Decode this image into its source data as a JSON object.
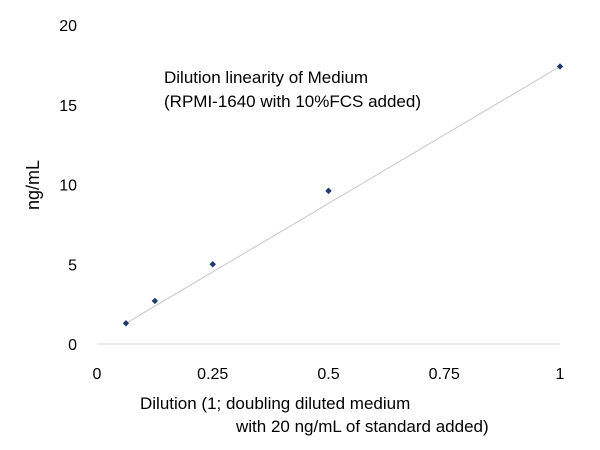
{
  "chart_data": {
    "type": "scatter",
    "title": "",
    "annotation": [
      "Dilution linearity of Medium",
      "(RPMI-1640 with 10%FCS added)"
    ],
    "xlabel": [
      "Dilution (1; doubling diluted medium",
      "with 20 ng/mL of standard added)"
    ],
    "ylabel": "ng/mL",
    "xlim": [
      0,
      1
    ],
    "ylim": [
      0,
      20
    ],
    "x_ticks": [
      "0",
      "0.25",
      "0.5",
      "0.75",
      "1"
    ],
    "y_ticks": [
      "0",
      "5",
      "10",
      "15",
      "20"
    ],
    "grid": false,
    "trendline": true,
    "colors": {
      "marker": "#1f3a6e",
      "trendline": "#c8c8c8",
      "axis": "#000000"
    },
    "series": [
      {
        "x": [
          0.0625,
          0.125,
          0.25,
          0.5,
          1
        ],
        "y": [
          1.3,
          2.7,
          5.0,
          9.6,
          17.4
        ]
      }
    ]
  }
}
